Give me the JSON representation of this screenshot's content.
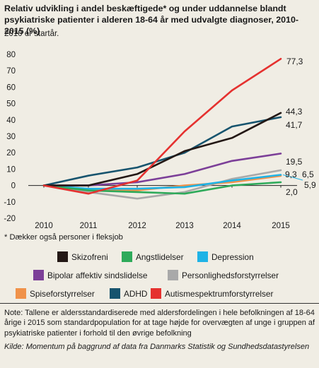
{
  "title": "Relativ udvikling i andel beskæftigede* og under uddannelse blandt psykiatriske patienter i alderen 18-64 år med udvalgte diagnoser, 2010-2015 (%)",
  "subtitle": "2010 er startår.",
  "footnote": "* Dækker også personer i fleksjob",
  "note": "Note: Tallene er aldersstandardiserede med aldersfordelingen i hele befolkningen af 18-64 årige i 2015 som standardpopulation for at tage højde for overvægten af unge i gruppen af psykiatriske patienter i forhold til den øvrige befolkning",
  "source": "Kilde: Momentum på baggrund af data fra Danmarks Statistik og Sundhedsdatastyrelsen",
  "chart_data": {
    "type": "line",
    "x": [
      "2010",
      "2011",
      "2012",
      "2013",
      "2014",
      "2015"
    ],
    "ylim": [
      -20,
      80
    ],
    "yticks": [
      "-20",
      "-10",
      "0",
      "10",
      "20",
      "30",
      "40",
      "50",
      "60",
      "70",
      "80"
    ],
    "legend_position": "bottom",
    "series": [
      {
        "name": "Skizofreni",
        "color": "#231815",
        "values": [
          0,
          0,
          7,
          21,
          29,
          44.3
        ],
        "end_label": "44,3"
      },
      {
        "name": "Angstlidelser",
        "color": "#2eaa5a",
        "values": [
          0,
          -3,
          -4,
          -5,
          0,
          2.0
        ],
        "end_label": "2,0"
      },
      {
        "name": "Depression",
        "color": "#1fb3e6",
        "values": [
          0,
          -2,
          -2,
          -1,
          3,
          6.5
        ],
        "end_label": "6,5"
      },
      {
        "name": "Bipolar affektiv sindslidelse",
        "color": "#7c3f98",
        "values": [
          0,
          0,
          2,
          7,
          15,
          19.5
        ],
        "end_label": "19,5"
      },
      {
        "name": "Personlighedsforstyrrelser",
        "color": "#a9a9a9",
        "values": [
          0,
          -4,
          -8,
          -4,
          4,
          9.3
        ],
        "end_label": "9,3"
      },
      {
        "name": "Spiseforstyrrelser",
        "color": "#f0924a",
        "values": [
          0,
          -2,
          -3,
          0,
          2,
          5.9
        ],
        "end_label": "5,9"
      },
      {
        "name": "ADHD",
        "color": "#17546e",
        "values": [
          0,
          6,
          11,
          20,
          36,
          41.7
        ],
        "end_label": "41,7"
      },
      {
        "name": "Autismespektrumforstyrrelser",
        "color": "#e5312f",
        "values": [
          0,
          -5,
          3,
          33,
          58,
          77.3
        ],
        "end_label": "77,3"
      }
    ]
  }
}
